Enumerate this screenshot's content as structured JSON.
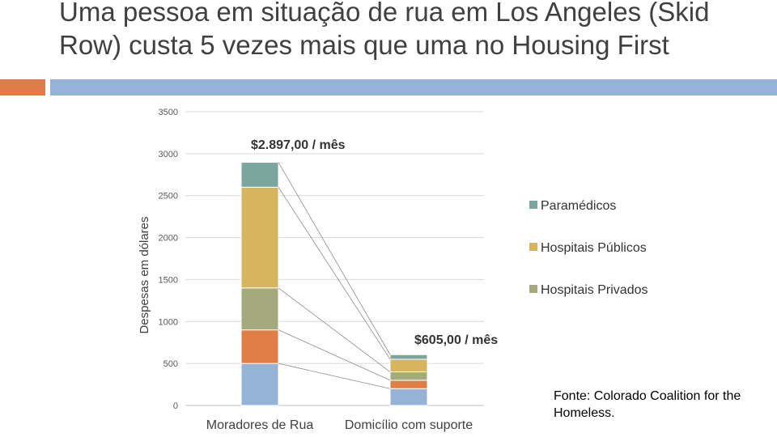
{
  "slide": {
    "title": "Uma pessoa em situação de rua em Los Angeles (Skid Row) custa 5 vezes mais que uma no Housing First",
    "source": "Fonte: Colorado Coalition for the Homeless.",
    "accent_left": "#E07A47",
    "accent_right": "#95B3D7"
  },
  "chart_data": {
    "type": "bar",
    "stacked": true,
    "categories": [
      "Moradores de Rua",
      "Domicílio com suporte"
    ],
    "ylabel": "Despesas em dólares",
    "ylim": [
      0,
      3500
    ],
    "yticks": [
      0,
      500,
      1000,
      1500,
      2000,
      2500,
      3000,
      3500
    ],
    "grid": true,
    "series": [
      {
        "values": [
          500,
          200
        ],
        "color": "#95B3D7"
      },
      {
        "values": [
          400,
          100
        ],
        "color": "#E07E47"
      },
      {
        "name": "Hospitais Privados",
        "values": [
          500,
          100
        ],
        "color": "#A4A97E"
      },
      {
        "name": "Hospitais Públicos",
        "values": [
          1200,
          150
        ],
        "color": "#D7B55E"
      },
      {
        "name": "Paramédicos",
        "values": [
          297,
          55
        ],
        "color": "#7BA69E"
      }
    ],
    "annotations": [
      "$2.897,00 / mês",
      "$605,00 / mês"
    ],
    "legend_position": "right"
  }
}
